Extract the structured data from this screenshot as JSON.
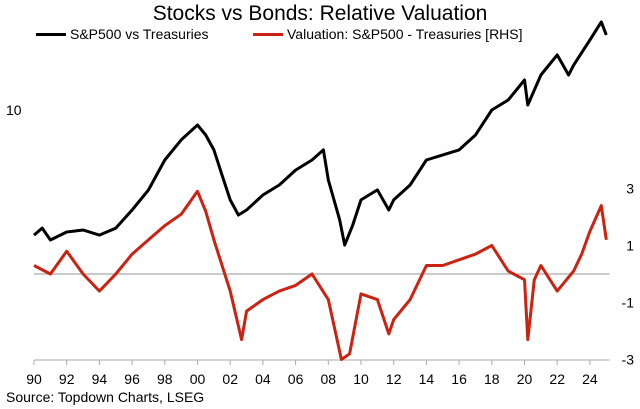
{
  "chart_data": {
    "type": "line",
    "title": "Stocks vs Bonds: Relative Valuation",
    "source": "Source: Topdown Charts, LSEG",
    "x_ticks": [
      "90",
      "92",
      "94",
      "96",
      "98",
      "00",
      "02",
      "04",
      "06",
      "08",
      "10",
      "12",
      "14",
      "16",
      "18",
      "20",
      "22",
      "24"
    ],
    "xlim": [
      1990,
      2025.2
    ],
    "left_axis": {
      "scale": "log",
      "ticks": [
        "10"
      ],
      "tick_values": [
        10
      ],
      "ylim": [
        1,
        22.9
      ]
    },
    "right_axis": {
      "scale": "linear",
      "ticks": [
        "3",
        "1",
        "-1",
        "-3"
      ],
      "tick_values": [
        3,
        1,
        -1,
        -3
      ],
      "ylim": [
        -3,
        3
      ]
    },
    "zero_line": true,
    "grid": false,
    "legend_placement": "top-left",
    "series": [
      {
        "name": "S&P500 vs Treasuries",
        "axis": "left",
        "color": "#000000",
        "x": [
          1990,
          1990.5,
          1991,
          1992,
          1993,
          1994,
          1995,
          1996,
          1997,
          1998,
          1998.5,
          1999,
          2000,
          2000.5,
          2001,
          2001.5,
          2002,
          2002.5,
          2003,
          2004,
          2005,
          2006,
          2007,
          2007.7,
          2008,
          2008.7,
          2009,
          2009.5,
          2010,
          2011,
          2011.7,
          2012,
          2013,
          2014,
          2015,
          2016,
          2017,
          2018,
          2019,
          2020,
          2020.2,
          2021,
          2022,
          2022.7,
          2023,
          2024,
          2024.7,
          2025
        ],
        "y": [
          3.16,
          3.37,
          3.02,
          3.25,
          3.31,
          3.16,
          3.37,
          3.98,
          4.79,
          6.31,
          6.92,
          7.59,
          8.71,
          7.94,
          6.92,
          5.5,
          4.37,
          3.8,
          3.98,
          4.57,
          5.01,
          5.75,
          6.31,
          6.92,
          5.25,
          3.63,
          2.88,
          3.47,
          4.37,
          4.79,
          3.98,
          4.37,
          5.01,
          6.31,
          6.61,
          6.92,
          7.94,
          10,
          10.96,
          13.18,
          10.47,
          13.8,
          16.6,
          13.8,
          15.1,
          19.05,
          22.5,
          19.95
        ]
      },
      {
        "name": "Valuation: S&P500 - Treasuries [RHS]",
        "axis": "right",
        "color": "#cc2211",
        "x": [
          1990,
          1991,
          1992,
          1993,
          1994,
          1995,
          1996,
          1997,
          1998,
          1999,
          2000,
          2000.5,
          2001,
          2002,
          2002.7,
          2003,
          2004,
          2005,
          2006,
          2007,
          2008,
          2008.8,
          2009.3,
          2010,
          2011,
          2011.7,
          2012,
          2013,
          2014,
          2015,
          2016,
          2017,
          2018,
          2019,
          2020,
          2020.2,
          2020.6,
          2021,
          2022,
          2023,
          2023.5,
          2024,
          2024.7,
          2025
        ],
        "y": [
          0.3,
          0,
          0.8,
          0,
          -0.6,
          0,
          0.7,
          1.2,
          1.7,
          2.1,
          2.9,
          2.2,
          1.2,
          -0.6,
          -2.3,
          -1.3,
          -0.9,
          -0.6,
          -0.4,
          0,
          -0.9,
          -3.0,
          -2.8,
          -0.7,
          -0.9,
          -2.1,
          -1.6,
          -0.9,
          0.3,
          0.3,
          0.5,
          0.7,
          1.0,
          0.1,
          -0.2,
          -2.3,
          -0.2,
          0.3,
          -0.6,
          0.1,
          0.7,
          1.5,
          2.4,
          1.2
        ]
      }
    ]
  }
}
